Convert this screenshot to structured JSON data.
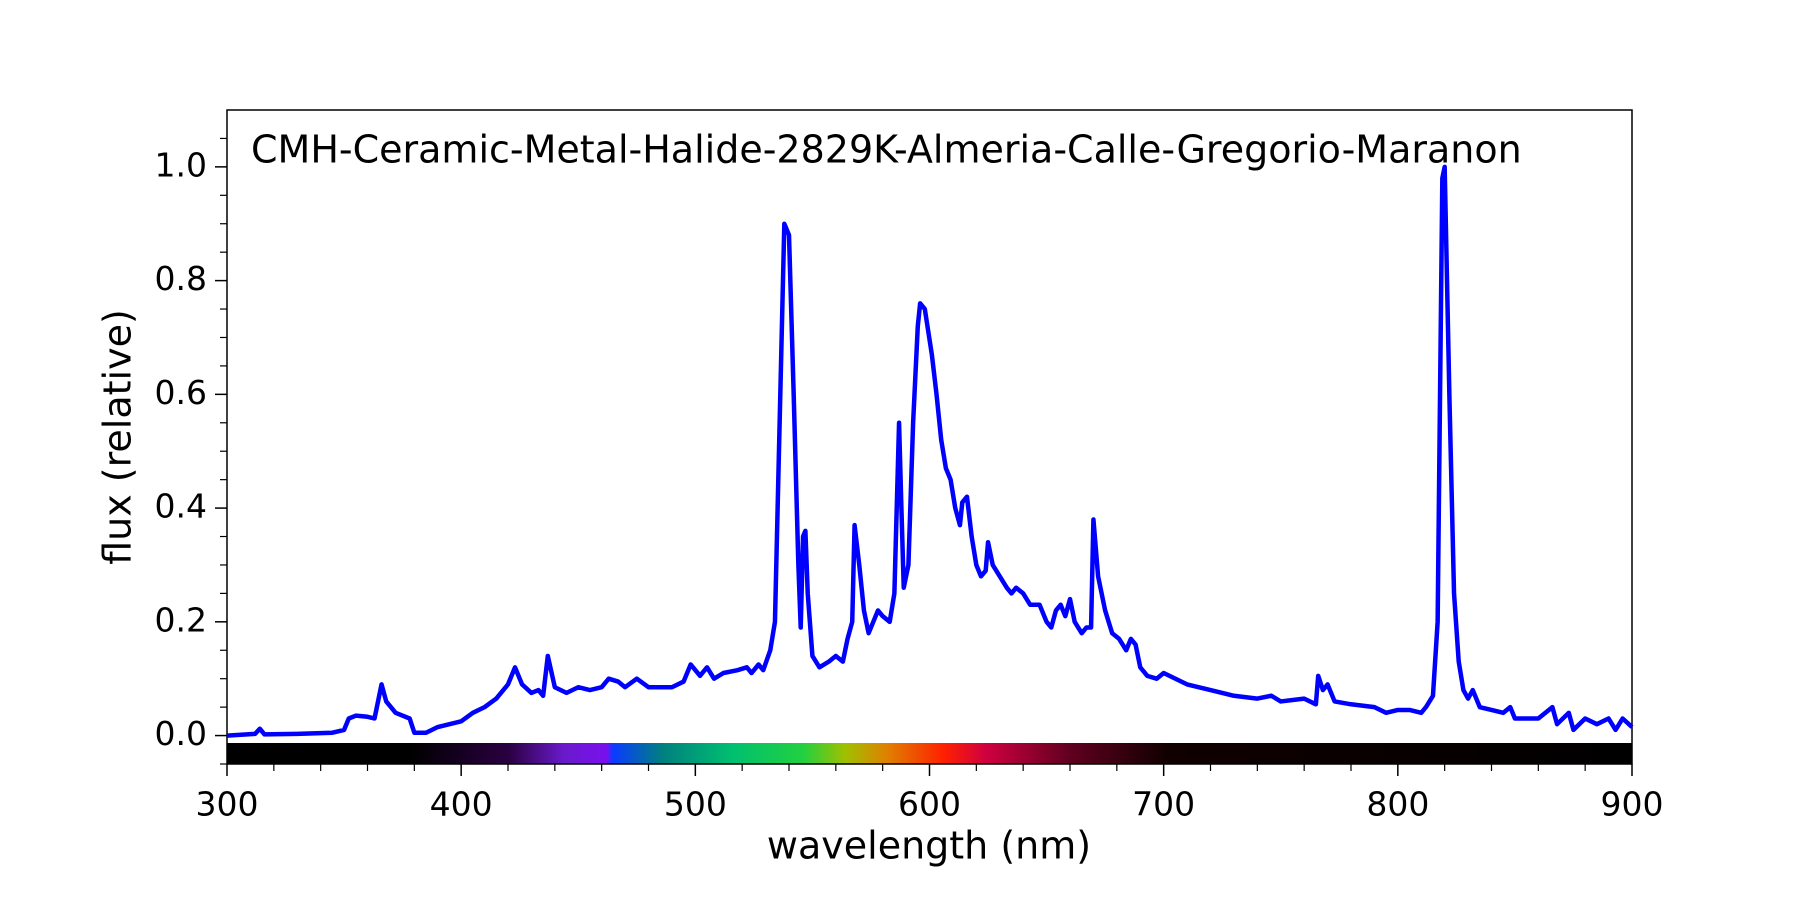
{
  "chart_data": {
    "type": "line",
    "title": "CMH-Ceramic-Metal-Halide-2829K-Almeria-Calle-Gregorio-Maranon",
    "x_label": "wavelength (nm)",
    "y_label": "flux (relative)",
    "xlim": [
      300,
      900
    ],
    "ylim": [
      -0.05,
      1.1
    ],
    "xticks": [
      300,
      400,
      500,
      600,
      700,
      800,
      900
    ],
    "yticks": [
      {
        "value": 0,
        "label": "0.0"
      },
      0.2,
      0.4,
      0.6,
      0.8,
      {
        "value": 1,
        "label": "1.0"
      }
    ],
    "x_minor_ticks": [
      320,
      340,
      360,
      380,
      420,
      440,
      460,
      480,
      520,
      540,
      560,
      580,
      620,
      640,
      660,
      680,
      720,
      740,
      760,
      780,
      820,
      840,
      860,
      880
    ],
    "y_minor_ticks": [
      -0.05,
      0.05,
      0.1,
      0.15,
      0.25,
      0.3,
      0.35,
      0.45,
      0.5,
      0.55,
      0.65,
      0.7,
      0.75,
      0.85,
      0.9,
      0.95,
      1.05
    ],
    "series": [
      {
        "color": "#0000ff",
        "x": [
          300,
          312,
          314,
          316,
          330,
          345,
          350,
          352,
          355,
          360,
          363,
          366,
          368,
          372,
          378,
          380,
          385,
          390,
          400,
          405,
          410,
          415,
          420,
          423,
          426,
          430,
          433,
          435,
          437,
          440,
          445,
          450,
          455,
          460,
          463,
          467,
          470,
          475,
          480,
          490,
          495,
          498,
          502,
          505,
          508,
          512,
          518,
          522,
          524,
          527,
          529,
          532,
          534,
          536,
          538,
          540,
          542,
          544,
          545,
          546,
          547,
          548,
          550,
          553,
          557,
          560,
          563,
          565,
          567,
          568,
          570,
          572,
          574,
          576,
          578,
          580,
          583,
          585,
          587,
          588,
          589,
          591,
          593,
          595,
          596,
          598,
          601,
          603,
          605,
          607,
          609,
          611,
          613,
          614,
          616,
          618,
          620,
          622,
          624,
          625,
          627,
          630,
          633,
          635,
          637,
          640,
          643,
          647,
          650,
          652,
          654,
          656,
          658,
          660,
          662,
          665,
          667,
          669,
          670,
          672,
          675,
          678,
          681,
          684,
          686,
          688,
          690,
          693,
          697,
          700,
          710,
          720,
          730,
          740,
          746,
          750,
          760,
          765,
          766,
          768,
          770,
          773,
          780,
          790,
          795,
          800,
          805,
          810,
          812,
          815,
          817,
          819,
          820,
          822,
          824,
          826,
          828,
          830,
          832,
          835,
          840,
          845,
          848,
          850,
          860,
          866,
          868,
          873,
          875,
          880,
          885,
          890,
          893,
          896,
          900
        ],
        "values": [
          0.0,
          0.003,
          0.012,
          0.002,
          0.003,
          0.005,
          0.01,
          0.03,
          0.035,
          0.033,
          0.03,
          0.09,
          0.06,
          0.04,
          0.03,
          0.005,
          0.005,
          0.015,
          0.025,
          0.04,
          0.05,
          0.065,
          0.09,
          0.12,
          0.09,
          0.075,
          0.08,
          0.07,
          0.14,
          0.085,
          0.075,
          0.085,
          0.08,
          0.085,
          0.1,
          0.095,
          0.085,
          0.1,
          0.085,
          0.085,
          0.095,
          0.125,
          0.105,
          0.12,
          0.1,
          0.11,
          0.115,
          0.12,
          0.11,
          0.125,
          0.115,
          0.15,
          0.2,
          0.55,
          0.9,
          0.88,
          0.6,
          0.3,
          0.19,
          0.35,
          0.36,
          0.25,
          0.14,
          0.12,
          0.13,
          0.14,
          0.13,
          0.17,
          0.2,
          0.37,
          0.3,
          0.22,
          0.18,
          0.2,
          0.22,
          0.21,
          0.2,
          0.25,
          0.55,
          0.4,
          0.26,
          0.3,
          0.55,
          0.72,
          0.76,
          0.75,
          0.67,
          0.6,
          0.52,
          0.47,
          0.45,
          0.4,
          0.37,
          0.41,
          0.42,
          0.35,
          0.3,
          0.28,
          0.29,
          0.34,
          0.3,
          0.28,
          0.26,
          0.25,
          0.26,
          0.25,
          0.23,
          0.23,
          0.2,
          0.19,
          0.22,
          0.23,
          0.21,
          0.24,
          0.2,
          0.18,
          0.19,
          0.19,
          0.38,
          0.28,
          0.22,
          0.18,
          0.17,
          0.15,
          0.17,
          0.16,
          0.12,
          0.105,
          0.1,
          0.11,
          0.09,
          0.08,
          0.07,
          0.065,
          0.07,
          0.06,
          0.065,
          0.055,
          0.105,
          0.08,
          0.09,
          0.06,
          0.055,
          0.05,
          0.04,
          0.045,
          0.045,
          0.04,
          0.05,
          0.07,
          0.2,
          0.98,
          1.0,
          0.6,
          0.25,
          0.13,
          0.08,
          0.065,
          0.08,
          0.05,
          0.045,
          0.04,
          0.05,
          0.03,
          0.03,
          0.05,
          0.02,
          0.04,
          0.01,
          0.03,
          0.02,
          0.03,
          0.01,
          0.03,
          0.015
        ]
      }
    ]
  }
}
